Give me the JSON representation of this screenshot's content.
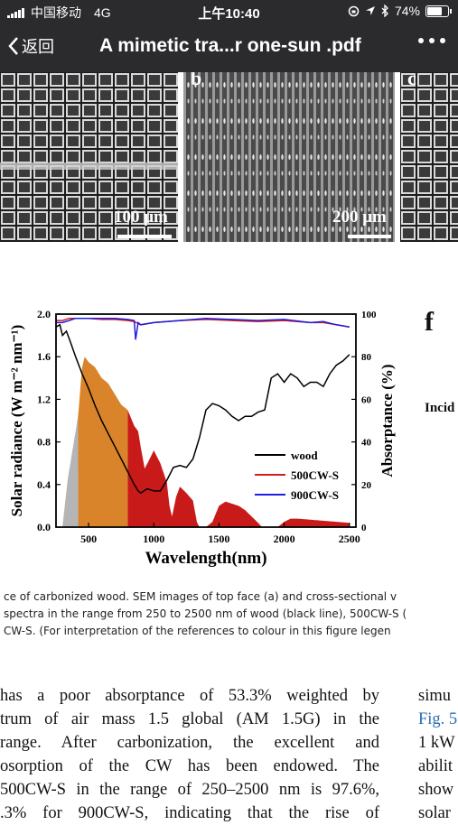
{
  "status_bar": {
    "carrier": "中国移动",
    "network": "4G",
    "time": "上午10:40",
    "battery_percent": "74%",
    "battery_level": 0.74
  },
  "nav": {
    "back_label": "返回",
    "title": "A mimetic tra...r one-sun .pdf"
  },
  "sem_panels": {
    "panel_a_scale": "100 μm",
    "panel_b_label": "b",
    "panel_b_scale": "200 μm",
    "panel_c_label": "c"
  },
  "figure_label": "f",
  "side_text": "Incid",
  "chart_data": {
    "type": "line",
    "xlabel": "Wavelength(nm)",
    "ylabel": "Solar radiance (W m⁻² nm⁻¹)",
    "y2label": "Absorptance (%)",
    "xlim": [
      250,
      2550
    ],
    "ylim": [
      0,
      2.0
    ],
    "y2lim": [
      0,
      100
    ],
    "x_ticks": [
      "500",
      "1000",
      "1500",
      "2000",
      "2500"
    ],
    "x_tick_values": [
      500,
      1000,
      1500,
      2000,
      2500
    ],
    "y_ticks": [
      "0.0",
      "0.4",
      "0.8",
      "1.2",
      "1.6",
      "2.0"
    ],
    "y_tick_values": [
      0,
      0.4,
      0.8,
      1.2,
      1.6,
      2.0
    ],
    "y2_ticks": [
      "0",
      "20",
      "40",
      "60",
      "80",
      "100"
    ],
    "y2_tick_values": [
      0,
      20,
      40,
      60,
      80,
      100
    ],
    "legend_position": "bottom-right",
    "solar_fill_colors": {
      "uv": "#b5b5b5",
      "visible": "#d9842a",
      "infrared": "#c91a1a"
    },
    "solar_spectrum": {
      "x": [
        300,
        340,
        380,
        420,
        450,
        470,
        500,
        550,
        600,
        650,
        700,
        750,
        800,
        850,
        880,
        900,
        930,
        960,
        1000,
        1050,
        1100,
        1120,
        1140,
        1170,
        1200,
        1250,
        1300,
        1330,
        1350,
        1400,
        1450,
        1500,
        1550,
        1600,
        1650,
        1700,
        1750,
        1800,
        1830,
        1850,
        1950,
        2000,
        2050,
        2100,
        2200,
        2300,
        2400,
        2500
      ],
      "y": [
        0.01,
        0.45,
        0.75,
        1.05,
        1.5,
        1.6,
        1.55,
        1.5,
        1.4,
        1.35,
        1.25,
        1.15,
        1.1,
        0.95,
        0.9,
        0.75,
        0.55,
        0.62,
        0.72,
        0.6,
        0.42,
        0.2,
        0.1,
        0.28,
        0.38,
        0.32,
        0.25,
        0.05,
        0.0,
        0.0,
        0.05,
        0.2,
        0.24,
        0.22,
        0.2,
        0.16,
        0.1,
        0.04,
        0.0,
        0.0,
        0.0,
        0.05,
        0.08,
        0.08,
        0.07,
        0.06,
        0.05,
        0.04
      ]
    },
    "series": [
      {
        "name": "wood",
        "color": "#000000",
        "x": [
          250,
          280,
          300,
          330,
          360,
          400,
          450,
          500,
          550,
          600,
          650,
          700,
          750,
          800,
          850,
          880,
          900,
          950,
          1000,
          1050,
          1100,
          1150,
          1200,
          1250,
          1300,
          1350,
          1400,
          1450,
          1500,
          1550,
          1600,
          1650,
          1700,
          1750,
          1800,
          1850,
          1900,
          1950,
          2000,
          2050,
          2100,
          2150,
          2200,
          2250,
          2300,
          2350,
          2400,
          2450,
          2500
        ],
        "y": [
          94,
          95,
          90,
          92,
          87,
          80,
          72,
          65,
          57,
          50,
          44,
          38,
          32,
          26,
          20,
          17,
          16,
          18,
          17,
          17,
          22,
          28,
          29,
          28,
          32,
          42,
          55,
          58,
          57,
          55,
          52,
          50,
          52,
          52,
          54,
          55,
          70,
          72,
          68,
          72,
          70,
          66,
          68,
          68,
          66,
          72,
          76,
          78,
          81
        ]
      },
      {
        "name": "500CW-S",
        "color": "#d41f1f",
        "x": [
          250,
          300,
          350,
          400,
          500,
          600,
          700,
          800,
          850,
          900,
          1000,
          1200,
          1400,
          1600,
          1800,
          2000,
          2200,
          2300,
          2400,
          2500
        ],
        "y": [
          97,
          97,
          98,
          98,
          98,
          97.5,
          97.5,
          97,
          96.5,
          95,
          96,
          97,
          97.5,
          97,
          96.5,
          97,
          96,
          96,
          95,
          94
        ]
      },
      {
        "name": "900CW-S",
        "color": "#1f1fe0",
        "x": [
          250,
          300,
          350,
          400,
          500,
          600,
          700,
          800,
          850,
          860,
          880,
          900,
          1000,
          1200,
          1400,
          1600,
          1800,
          2000,
          2200,
          2300,
          2400,
          2500
        ],
        "y": [
          96,
          96,
          97,
          98,
          98,
          98,
          98,
          97.5,
          97,
          88,
          96,
          95,
          96,
          97,
          98,
          97.5,
          97,
          97.5,
          96,
          96.5,
          95,
          94
        ]
      }
    ]
  },
  "caption": {
    "line1": "ce of carbonized wood. SEM images of top face (a) and cross-sectional v",
    "line2": "spectra in the range from 250 to 2500 nm of wood (black line), 500CW-S (",
    "line3": "CW-S. (For interpretation of the references to colour in this figure legen"
  },
  "body": {
    "col1": [
      "has a poor absorptance of 53.3% weighted by",
      "trum of air mass 1.5 global (AM 1.5G) in the",
      "range. After carbonization, the excellent and",
      "osorption of the CW has been endowed. The",
      "500CW-S in the range of 250–2500 nm is 97.6%,",
      ".3% for 900CW-S, indicating that the rise of"
    ],
    "col2": [
      "simu",
      "Fig. 5",
      "1 kW",
      "abilit",
      "show",
      "solar"
    ]
  }
}
